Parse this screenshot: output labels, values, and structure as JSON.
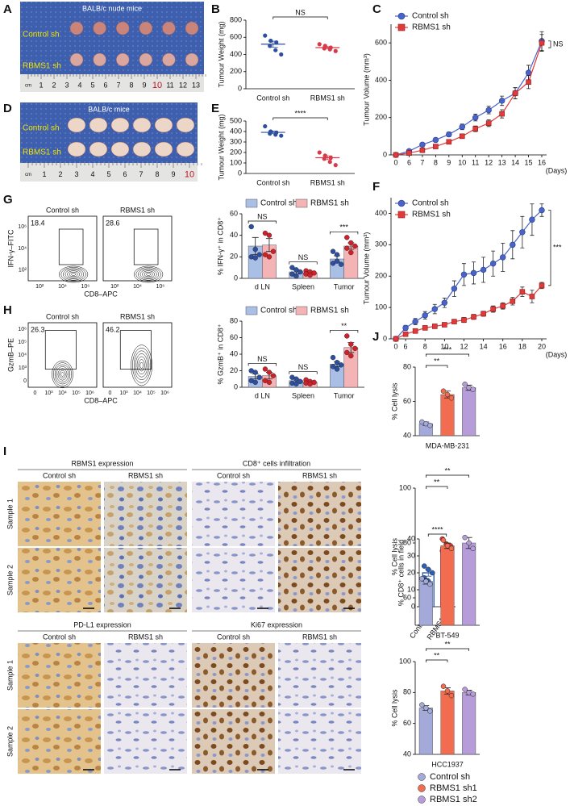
{
  "figure": {
    "panel_letters": [
      "A",
      "B",
      "C",
      "D",
      "E",
      "F",
      "G",
      "H",
      "I",
      "J"
    ],
    "photo_A": {
      "title": "BALB/c nude mice",
      "row_labels": [
        "Control sh",
        "RBMS1 sh"
      ],
      "ruler": [
        "cm",
        "1",
        "2",
        "3",
        "4",
        "5",
        "6",
        "7",
        "8",
        "9",
        "10",
        "11",
        "12",
        "13"
      ]
    },
    "photo_D": {
      "title": "BALB/c mice",
      "row_labels": [
        "Control sh",
        "RBMS1 sh"
      ],
      "ruler": [
        "cm",
        "1",
        "2",
        "3",
        "4",
        "5",
        "6",
        "7",
        "8",
        "9",
        "10"
      ]
    },
    "flow_G": {
      "y_label": "IFN-γ–FITC",
      "x_label": "CD8–APC",
      "x_ticks": [
        "10²",
        "10⁴",
        "10⁶"
      ],
      "y_ticks": [
        "10²",
        "10⁴",
        "10⁶"
      ],
      "plots": [
        {
          "title": "Control sh",
          "percent": 18.4
        },
        {
          "title": "RBMS1 sh",
          "percent": 28.6
        }
      ]
    },
    "flow_H": {
      "y_label": "GzmB–PE",
      "x_label": "CD8–APC",
      "x_ticks": [
        "0",
        "10³",
        "10⁴",
        "10⁵",
        "10⁶"
      ],
      "y_ticks": [
        "0",
        "10³",
        "10⁴",
        "10⁵",
        "10⁶"
      ],
      "plots": [
        {
          "title": "Control sh",
          "percent": 26.3
        },
        {
          "title": "RBMS1 sh",
          "percent": 46.2
        }
      ]
    },
    "ihc": {
      "row_labels": [
        "Sample 1",
        "Sample 2"
      ],
      "sections": [
        {
          "title": "RBMS1 expression",
          "columns": [
            "Control sh",
            "RBMS1 sh"
          ]
        },
        {
          "title": "CD8⁺ cells infiltration",
          "columns": [
            "Control sh",
            "RBMS1 sh"
          ]
        },
        {
          "title": "PD-L1 expression",
          "columns": [
            "Control sh",
            "RBMS1 sh"
          ]
        },
        {
          "title": "Ki67 expression",
          "columns": [
            "Control sh",
            "RBMS1 sh"
          ]
        }
      ]
    },
    "j_legend": [
      {
        "name": "Control sh",
        "color": "#a3a9d8"
      },
      {
        "name": "RBMS1 sh1",
        "color": "#f26c4f"
      },
      {
        "name": "RBMS1 sh2",
        "color": "#b69cd9"
      }
    ]
  },
  "chart_data": [
    {
      "type": "dot",
      "ylabel": "Tumour Weight (mg)",
      "categories": [
        "Control sh",
        "RBMS1 sh"
      ],
      "colors": [
        "#2e4fa0",
        "#d83a4a"
      ],
      "points": [
        [
          620,
          560,
          540,
          500,
          450,
          400
        ],
        [
          520,
          500,
          480,
          470,
          460,
          440
        ]
      ],
      "means": [
        520,
        480
      ],
      "errors": [
        35,
        12
      ],
      "ylim": [
        0,
        800
      ],
      "yticks": [
        0,
        200,
        400,
        600,
        800
      ],
      "significance": [
        "NS"
      ]
    },
    {
      "type": "line",
      "ylabel": "Tumour Volume (mm³)",
      "xlabel": "(Days)",
      "categories": [
        "0",
        "6",
        "7",
        "8",
        "9",
        "10",
        "11",
        "12",
        "13",
        "14",
        "15",
        "16"
      ],
      "series": [
        {
          "name": "Control sh",
          "color": "#4a63c8",
          "marker": "circle",
          "values": [
            0,
            20,
            55,
            80,
            110,
            150,
            200,
            240,
            290,
            330,
            440,
            610
          ],
          "errors": [
            0,
            5,
            8,
            10,
            12,
            15,
            18,
            20,
            25,
            30,
            40,
            50
          ]
        },
        {
          "name": "RBMS1 sh",
          "color": "#e03a3a",
          "marker": "square",
          "values": [
            0,
            10,
            25,
            45,
            70,
            100,
            140,
            170,
            220,
            330,
            390,
            600
          ],
          "errors": [
            0,
            4,
            6,
            8,
            10,
            12,
            15,
            18,
            22,
            30,
            35,
            45
          ]
        }
      ],
      "ylim": [
        0,
        700
      ],
      "yticks": [
        0,
        200,
        400,
        600
      ],
      "significance": [
        "NS"
      ]
    },
    {
      "type": "dot",
      "ylabel": "Tumour Weight (mg)",
      "categories": [
        "Control sh",
        "RBMS1 sh"
      ],
      "colors": [
        "#2e4fa0",
        "#d83a4a"
      ],
      "points": [
        [
          450,
          400,
          390,
          380,
          370,
          360
        ],
        [
          200,
          170,
          150,
          140,
          110,
          80
        ]
      ],
      "means": [
        392,
        150
      ],
      "errors": [
        13,
        18
      ],
      "ylim": [
        0,
        500
      ],
      "yticks": [
        0,
        100,
        200,
        300,
        400,
        500
      ],
      "significance": [
        "****"
      ]
    },
    {
      "type": "line",
      "ylabel": "Tumour Volume (mm³)",
      "xlabel": "(Days)",
      "categories": [
        "0",
        "6",
        null,
        "8",
        null,
        "10",
        null,
        "12",
        null,
        "14",
        null,
        "16",
        null,
        "18",
        null,
        "20"
      ],
      "series": [
        {
          "name": "Control sh",
          "color": "#4a63c8",
          "marker": "circle",
          "values": [
            0,
            35,
            55,
            75,
            95,
            115,
            160,
            205,
            210,
            220,
            240,
            260,
            300,
            340,
            380,
            410
          ],
          "errors": [
            0,
            8,
            10,
            12,
            15,
            15,
            25,
            35,
            35,
            40,
            40,
            45,
            45,
            50,
            50,
            20
          ]
        },
        {
          "name": "RBMS1 sh",
          "color": "#e03a3a",
          "marker": "square",
          "values": [
            0,
            15,
            25,
            35,
            40,
            45,
            55,
            60,
            70,
            80,
            95,
            105,
            120,
            150,
            135,
            170
          ],
          "errors": [
            0,
            5,
            5,
            5,
            6,
            6,
            6,
            8,
            8,
            8,
            10,
            10,
            12,
            15,
            20,
            10
          ]
        }
      ],
      "ylim": [
        0,
        450
      ],
      "yticks": [
        0,
        100,
        200,
        300,
        400
      ],
      "significance": [
        "***"
      ]
    },
    {
      "type": "gbar",
      "ylabel": "% IFN-γ⁺ in CD8⁺",
      "categories": [
        "d LN",
        "Spleen",
        "Tumor"
      ],
      "series": [
        {
          "name": "Control sh",
          "color": "#a9bfe6",
          "point_color": "#2e4fa0",
          "values": [
            30,
            6,
            18
          ],
          "errors": [
            8,
            2,
            3
          ],
          "points": [
            [
              48,
              27,
              22,
              20,
              19
            ],
            [
              10,
              8,
              6,
              4,
              2
            ],
            [
              25,
              22,
              13,
              14,
              16
            ]
          ]
        },
        {
          "name": "RBMS1 sh",
          "color": "#f4b3b5",
          "point_color": "#d0202a",
          "values": [
            31,
            5,
            30
          ],
          "errors": [
            6,
            1.5,
            3
          ],
          "points": [
            [
              42,
              40,
              25,
              22,
              20
            ],
            [
              7,
              6,
              5,
              4,
              3
            ],
            [
              38,
              33,
              30,
              28,
              24
            ]
          ]
        }
      ],
      "ylim": [
        0,
        60
      ],
      "yticks": [
        0,
        20,
        40,
        60
      ],
      "significance": [
        "NS",
        "NS",
        "***"
      ]
    },
    {
      "type": "gbar",
      "ylabel": "% GzmB⁺ in CD8⁺",
      "categories": [
        "d LN",
        "Spleen",
        "Tumor"
      ],
      "series": [
        {
          "name": "Control sh",
          "color": "#a9bfe6",
          "point_color": "#2e4fa0",
          "values": [
            13,
            8,
            28
          ],
          "errors": [
            3,
            2,
            3
          ],
          "points": [
            [
              20,
              18,
              12,
              8,
              6
            ],
            [
              12,
              10,
              7,
              5,
              4
            ],
            [
              36,
              30,
              27,
              25,
              22
            ]
          ]
        },
        {
          "name": "RBMS1 sh",
          "color": "#f4b3b5",
          "point_color": "#d0202a",
          "values": [
            14,
            6,
            48
          ],
          "errors": [
            4,
            1.5,
            6
          ],
          "points": [
            [
              22,
              18,
              14,
              8,
              6
            ],
            [
              9,
              7,
              6,
              5,
              4
            ],
            [
              62,
              52,
              47,
              42,
              38
            ]
          ]
        }
      ],
      "ylim": [
        0,
        80
      ],
      "yticks": [
        0,
        20,
        40,
        60,
        80
      ],
      "significance": [
        "NS",
        "NS",
        "**"
      ]
    },
    {
      "type": "bar",
      "ylabel": "% CD8⁺ cells in field",
      "categories": [
        "Control sh",
        "RBMS1 sh"
      ],
      "colors": [
        "#2e5fb8",
        "#e0302a"
      ],
      "fill": false,
      "values": [
        20,
        35
      ],
      "errors": [
        2,
        2
      ],
      "points": [
        [
          24,
          22,
          20,
          17,
          15
        ],
        [
          40,
          37,
          36,
          33,
          31
        ]
      ],
      "ylim": [
        0,
        40
      ],
      "yticks": [
        0,
        10,
        20,
        30,
        40
      ],
      "significance": [
        "****"
      ]
    },
    {
      "type": "bar",
      "ylabel": "% Cell lysis",
      "xlabel": "MDA-MB-231",
      "fill": true,
      "values": [
        47,
        64,
        68
      ],
      "errors": [
        1,
        2,
        1.5
      ],
      "points": [
        [
          48,
          47,
          46
        ],
        [
          66,
          64,
          62
        ],
        [
          70,
          68,
          67
        ]
      ],
      "ylim": [
        40,
        80
      ],
      "yticks": [
        40,
        60,
        80
      ],
      "significance": [
        "**",
        "***"
      ]
    },
    {
      "type": "bar",
      "ylabel": "% Cell lysis",
      "xlabel": "BT-549",
      "fill": true,
      "values": [
        66,
        79,
        80
      ],
      "errors": [
        1,
        1,
        2
      ],
      "points": [
        [
          67,
          66,
          65
        ],
        [
          81,
          79,
          78
        ],
        [
          82,
          80,
          78
        ]
      ],
      "ylim": [
        50,
        100
      ],
      "yticks": [
        60,
        80,
        100
      ],
      "significance": [
        "**",
        "**"
      ]
    },
    {
      "type": "bar",
      "ylabel": "% Cell lysis",
      "xlabel": "HCC1937",
      "fill": true,
      "values": [
        70,
        81,
        80
      ],
      "errors": [
        1.5,
        2,
        1.5
      ],
      "points": [
        [
          72,
          70,
          68
        ],
        [
          84,
          81,
          78
        ],
        [
          82,
          80,
          79
        ]
      ],
      "ylim": [
        40,
        100
      ],
      "yticks": [
        40,
        60,
        80,
        100
      ],
      "significance": [
        "**",
        "**"
      ]
    }
  ]
}
